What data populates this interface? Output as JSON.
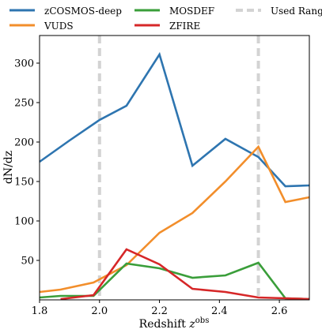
{
  "chart_data": {
    "type": "line",
    "xlabel": "Redshift ",
    "xlabel_sup": "obs",
    "xlabel_var": "z",
    "ylabel": "dN/dz",
    "xlim": [
      1.8,
      2.7
    ],
    "ylim": [
      0,
      335
    ],
    "x_ticks": [
      1.8,
      2.0,
      2.2,
      2.4,
      2.6
    ],
    "x_tick_labels": [
      "1.8",
      "2.0",
      "2.2",
      "2.4",
      "2.6"
    ],
    "y_ticks": [
      50,
      100,
      150,
      200,
      250,
      300
    ],
    "y_tick_labels": [
      "50",
      "100",
      "150",
      "200",
      "250",
      "300"
    ],
    "grid": false,
    "legend_position": "top (above plot, 3 columns)",
    "used_range": {
      "name": "Used Range",
      "x": [
        2.0,
        2.53
      ],
      "color": "#d3d3d3"
    },
    "series": [
      {
        "name": "zCOSMOS-deep",
        "color": "#2e75b0",
        "x": [
          1.8,
          1.9,
          2.0,
          2.09,
          2.2,
          2.31,
          2.42,
          2.53,
          2.62,
          2.7
        ],
        "y": [
          175,
          202,
          228,
          246,
          311,
          170,
          204,
          181,
          144,
          145
        ]
      },
      {
        "name": "VUDS",
        "color": "#f28e2b",
        "x": [
          1.8,
          1.87,
          1.98,
          2.09,
          2.2,
          2.31,
          2.42,
          2.53,
          2.62,
          2.7
        ],
        "y": [
          10,
          13,
          22,
          44,
          85,
          110,
          150,
          194,
          124,
          130
        ]
      },
      {
        "name": "MOSDEF",
        "color": "#3a9e3a",
        "x": [
          1.8,
          1.87,
          1.98,
          2.09,
          2.2,
          2.31,
          2.42,
          2.53,
          2.62,
          2.7
        ],
        "y": [
          3,
          5,
          5,
          46,
          40,
          28,
          31,
          47,
          2,
          1
        ]
      },
      {
        "name": "ZFIRE",
        "color": "#d62728",
        "x": [
          1.87,
          1.98,
          2.09,
          2.2,
          2.31,
          2.42,
          2.53,
          2.62,
          2.7
        ],
        "y": [
          1,
          6,
          64,
          45,
          14,
          10,
          3,
          2,
          1
        ]
      }
    ]
  }
}
